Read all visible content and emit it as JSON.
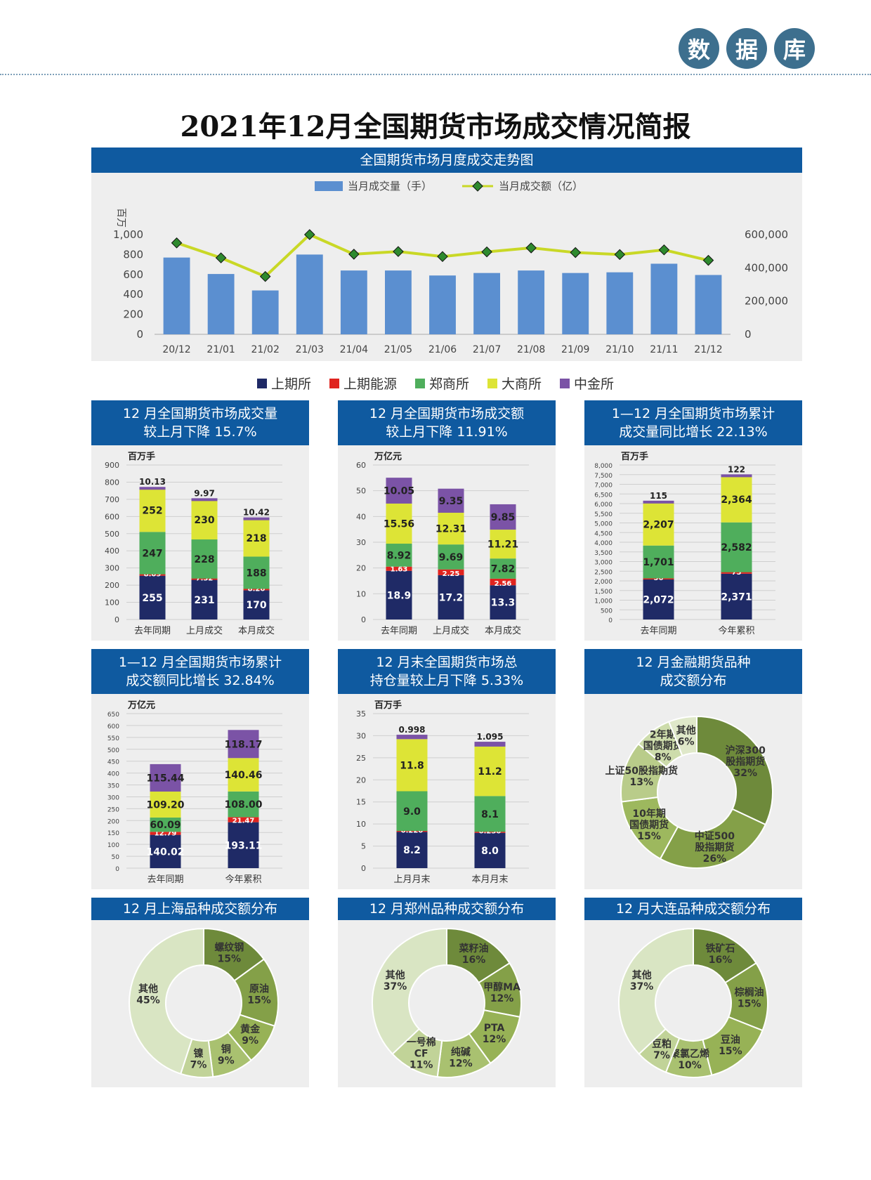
{
  "header": {
    "badge_chars": [
      "数",
      "据",
      "库"
    ]
  },
  "page_title": "2021年12月全国期货市场成交情况简报",
  "colors": {
    "shfe": "#1f2a66",
    "ine": "#e0241f",
    "czce": "#4fae5c",
    "dce": "#dde436",
    "cffex": "#7b53a6",
    "bar": "#5b8fd0",
    "line": "#c9d826"
  },
  "legend": [
    "上期所",
    "上期能源",
    "郑商所",
    "大商所",
    "中金所"
  ],
  "chart_data": [
    {
      "id": "trend",
      "type": "bar",
      "title": "全国期货市场月度成交走势图",
      "ylabel": "百万",
      "categories": [
        "20/12",
        "21/01",
        "21/02",
        "21/03",
        "21/04",
        "21/05",
        "21/06",
        "21/07",
        "21/08",
        "21/09",
        "21/10",
        "21/11",
        "21/12"
      ],
      "series": [
        {
          "name": "当月成交量（手）",
          "axis": "left",
          "values": [
            770,
            605,
            440,
            800,
            640,
            640,
            590,
            615,
            640,
            615,
            622,
            708,
            595
          ]
        },
        {
          "name": "当月成交额（亿）",
          "axis": "right",
          "type": "line",
          "values": [
            550000,
            460000,
            348000,
            600000,
            482000,
            498000,
            468000,
            496000,
            520000,
            492000,
            480000,
            508000,
            445000
          ]
        }
      ],
      "ylim_left": [
        0,
        1000
      ],
      "yticks_left": [
        "0",
        "200",
        "400",
        "600",
        "800",
        "1,000"
      ],
      "ylim_right": [
        0,
        600000
      ],
      "yticks_right": [
        "0",
        "200,000",
        "400,000",
        "600,000"
      ]
    },
    {
      "id": "c1",
      "type": "bar",
      "stacked": true,
      "title": [
        "12 月全国期货市场成交量",
        "较上月下降 15.7%"
      ],
      "unit": "百万手",
      "categories": [
        "去年同期",
        "上月成交",
        "本月成交"
      ],
      "ylim": [
        0,
        900
      ],
      "yticks": [
        0,
        100,
        200,
        300,
        400,
        500,
        600,
        700,
        800,
        900
      ],
      "series": [
        {
          "name": "上期所",
          "values": [
            255,
            231,
            170
          ],
          "labels": [
            "255",
            "231",
            "170"
          ]
        },
        {
          "name": "上期能源",
          "values": [
            8.09,
            7.32,
            8.26
          ],
          "labels": [
            "8.09",
            "7.32",
            "8.26"
          ]
        },
        {
          "name": "郑商所",
          "values": [
            247,
            228,
            188
          ],
          "labels": [
            "247",
            "228",
            "188"
          ]
        },
        {
          "name": "大商所",
          "values": [
            252,
            230,
            218
          ],
          "labels": [
            "252",
            "230",
            "218"
          ]
        },
        {
          "name": "中金所",
          "values": [
            10.13,
            9.97,
            10.42
          ],
          "labels": [
            "10.13",
            "9.97",
            "10.42"
          ]
        }
      ]
    },
    {
      "id": "c2",
      "type": "bar",
      "stacked": true,
      "title": [
        "12 月全国期货市场成交额",
        "较上月下降 11.91%"
      ],
      "unit": "万亿元",
      "categories": [
        "去年同期",
        "上月成交",
        "本月成交"
      ],
      "ylim": [
        0,
        60
      ],
      "yticks": [
        0,
        10,
        20,
        30,
        40,
        50,
        60
      ],
      "series": [
        {
          "name": "上期所",
          "values": [
            18.9,
            17.2,
            13.3
          ],
          "labels": [
            "18.9",
            "17.2",
            "13.3"
          ]
        },
        {
          "name": "上期能源",
          "values": [
            1.63,
            2.25,
            2.56
          ],
          "labels": [
            "1.63",
            "2.25",
            "2.56"
          ]
        },
        {
          "name": "郑商所",
          "values": [
            8.92,
            9.69,
            7.82
          ],
          "labels": [
            "8.92",
            "9.69",
            "7.82"
          ]
        },
        {
          "name": "大商所",
          "values": [
            15.56,
            12.31,
            11.21
          ],
          "labels": [
            "15.56",
            "12.31",
            "11.21"
          ]
        },
        {
          "name": "中金所",
          "values": [
            10.05,
            9.35,
            9.85
          ],
          "labels": [
            "10.05",
            "9.35",
            "9.85"
          ]
        }
      ]
    },
    {
      "id": "c3",
      "type": "bar",
      "stacked": true,
      "title": [
        "1—12 月全国期货市场累计",
        "成交量同比增长 22.13%"
      ],
      "unit": "百万手",
      "categories": [
        "去年同期",
        "今年累积"
      ],
      "ylim": [
        0,
        8000
      ],
      "yticks": [
        0,
        500,
        1000,
        1500,
        2000,
        2500,
        3000,
        3500,
        4000,
        4500,
        5000,
        5500,
        6000,
        6500,
        7000,
        7500,
        8000
      ],
      "series": [
        {
          "name": "上期所",
          "values": [
            2072,
            2371
          ],
          "labels": [
            "2,072",
            "2,371"
          ]
        },
        {
          "name": "上期能源",
          "values": [
            56,
            75
          ],
          "labels": [
            "56",
            "75"
          ]
        },
        {
          "name": "郑商所",
          "values": [
            1701,
            2582
          ],
          "labels": [
            "1,701",
            "2,582"
          ]
        },
        {
          "name": "大商所",
          "values": [
            2207,
            2364
          ],
          "labels": [
            "2,207",
            "2,364"
          ]
        },
        {
          "name": "中金所",
          "values": [
            115,
            122
          ],
          "labels": [
            "115",
            "122"
          ]
        }
      ]
    },
    {
      "id": "c4",
      "type": "bar",
      "stacked": true,
      "title": [
        "1—12 月全国期货市场累计",
        "成交额同比增长 32.84%"
      ],
      "unit": "万亿元",
      "categories": [
        "去年同期",
        "今年累积"
      ],
      "ylim": [
        0,
        650
      ],
      "yticks": [
        0,
        50,
        100,
        150,
        200,
        250,
        300,
        350,
        400,
        450,
        500,
        550,
        600,
        650
      ],
      "series": [
        {
          "name": "上期所",
          "values": [
            140.02,
            193.11
          ],
          "labels": [
            "140.02",
            "193.11"
          ]
        },
        {
          "name": "上期能源",
          "values": [
            12.79,
            21.47
          ],
          "labels": [
            "12.79",
            "21.47"
          ]
        },
        {
          "name": "郑商所",
          "values": [
            60.09,
            108.0
          ],
          "labels": [
            "60.09",
            "108.00"
          ]
        },
        {
          "name": "大商所",
          "values": [
            109.2,
            140.46
          ],
          "labels": [
            "109.20",
            "140.46"
          ]
        },
        {
          "name": "中金所",
          "values": [
            115.44,
            118.17
          ],
          "labels": [
            "115.44",
            "118.17"
          ]
        }
      ]
    },
    {
      "id": "c5",
      "type": "bar",
      "stacked": true,
      "title": [
        "12 月末全国期货市场总",
        "持仓量较上月下降 5.33%"
      ],
      "unit": "百万手",
      "categories": [
        "上月月末",
        "本月月末"
      ],
      "ylim": [
        0,
        35
      ],
      "yticks": [
        0,
        5,
        10,
        15,
        20,
        25,
        30,
        35
      ],
      "series": [
        {
          "name": "上期所",
          "values": [
            8.2,
            8.0
          ],
          "labels": [
            "8.2",
            "8.0"
          ]
        },
        {
          "name": "上期能源",
          "values": [
            0.22,
            0.23
          ],
          "labels": [
            "0.220",
            "0.230"
          ]
        },
        {
          "name": "郑商所",
          "values": [
            9.0,
            8.1
          ],
          "labels": [
            "9.0",
            "8.1"
          ]
        },
        {
          "name": "大商所",
          "values": [
            11.8,
            11.2
          ],
          "labels": [
            "11.8",
            "11.2"
          ]
        },
        {
          "name": "中金所",
          "values": [
            0.998,
            1.095
          ],
          "labels": [
            "0.998",
            "1.095"
          ]
        }
      ]
    },
    {
      "id": "p1",
      "type": "pie",
      "title": [
        "12 月金融期货品种",
        "成交额分布"
      ],
      "slices": [
        {
          "label": [
            "沪深300",
            "股指期货"
          ],
          "pct": "32%",
          "value": 32,
          "color": "#6e8a3b"
        },
        {
          "label": [
            "中证500",
            "股指期货"
          ],
          "pct": "26%",
          "value": 26,
          "color": "#84a048"
        },
        {
          "label": [
            "10年期",
            "国债期货"
          ],
          "pct": "15%",
          "value": 15,
          "color": "#9db85e"
        },
        {
          "label": [
            "上证50股指期货"
          ],
          "pct": "13%",
          "value": 13,
          "color": "#b9cc8a"
        },
        {
          "label": [
            "2年期",
            "国债期货"
          ],
          "pct": "8%",
          "value": 8,
          "color": "#cddcab"
        },
        {
          "label": [
            "其他"
          ],
          "pct": "6%",
          "value": 6,
          "color": "#dfe8c9"
        }
      ]
    },
    {
      "id": "p2",
      "type": "pie",
      "title": [
        "12 月上海品种成交额分布"
      ],
      "slices": [
        {
          "label": [
            "螺纹钢"
          ],
          "pct": "15%",
          "value": 15,
          "color": "#6e8a3b"
        },
        {
          "label": [
            "原油"
          ],
          "pct": "15%",
          "value": 15,
          "color": "#84a048"
        },
        {
          "label": [
            "黄金"
          ],
          "pct": "9%",
          "value": 9,
          "color": "#97b256"
        },
        {
          "label": [
            "铜"
          ],
          "pct": "9%",
          "value": 9,
          "color": "#a9c170"
        },
        {
          "label": [
            "镍"
          ],
          "pct": "7%",
          "value": 7,
          "color": "#c1d398"
        },
        {
          "label": [
            "其他"
          ],
          "pct": "45%",
          "value": 45,
          "color": "#d9e5c3"
        }
      ]
    },
    {
      "id": "p3",
      "type": "pie",
      "title": [
        "12 月郑州品种成交额分布"
      ],
      "slices": [
        {
          "label": [
            "菜籽油"
          ],
          "pct": "16%",
          "value": 16,
          "color": "#6e8a3b"
        },
        {
          "label": [
            "甲醇MA"
          ],
          "pct": "12%",
          "value": 12,
          "color": "#84a048"
        },
        {
          "label": [
            "PTA"
          ],
          "pct": "12%",
          "value": 12,
          "color": "#97b256"
        },
        {
          "label": [
            "纯碱"
          ],
          "pct": "12%",
          "value": 12,
          "color": "#a9c170"
        },
        {
          "label": [
            "一号棉",
            "CF"
          ],
          "pct": "11%",
          "value": 11,
          "color": "#c1d398"
        },
        {
          "label": [
            "其他"
          ],
          "pct": "37%",
          "value": 37,
          "color": "#d9e5c3"
        }
      ]
    },
    {
      "id": "p4",
      "type": "pie",
      "title": [
        "12 月大连品种成交额分布"
      ],
      "slices": [
        {
          "label": [
            "铁矿石"
          ],
          "pct": "16%",
          "value": 16,
          "color": "#6e8a3b"
        },
        {
          "label": [
            "棕榈油"
          ],
          "pct": "15%",
          "value": 15,
          "color": "#84a048"
        },
        {
          "label": [
            "豆油"
          ],
          "pct": "15%",
          "value": 15,
          "color": "#97b256"
        },
        {
          "label": [
            "聚氯乙烯"
          ],
          "pct": "10%",
          "value": 10,
          "color": "#a9c170"
        },
        {
          "label": [
            "豆粕"
          ],
          "pct": "7%",
          "value": 7,
          "color": "#c1d398"
        },
        {
          "label": [
            "其他"
          ],
          "pct": "37%",
          "value": 37,
          "color": "#d9e5c3"
        }
      ]
    }
  ]
}
